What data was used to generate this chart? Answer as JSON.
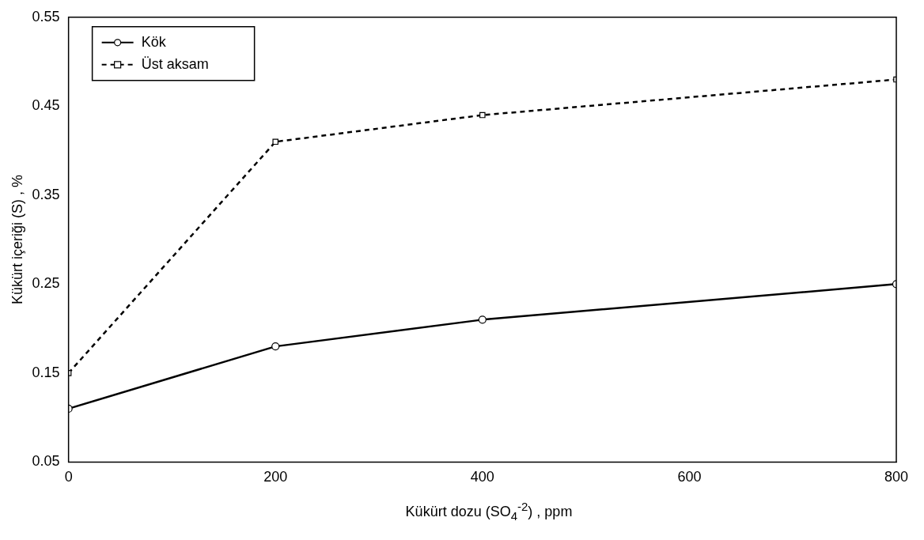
{
  "chart_data": {
    "type": "line",
    "xlabel": "Kükürt dozu (SO$_{4}$$^{-2}$) , ppm",
    "ylabel": "Kükürt içeriği (S) , %",
    "x": [
      0,
      200,
      400,
      800
    ],
    "series": [
      {
        "name": "Kök",
        "color": "#000000",
        "values": [
          0.11,
          0.18,
          0.21,
          0.25
        ],
        "marker": "circle",
        "line_style": "solid"
      },
      {
        "name": "Üst aksam",
        "color": "#000000",
        "values": [
          0.15,
          0.41,
          0.44,
          0.48
        ],
        "marker": "square",
        "line_style": "dashed"
      }
    ],
    "xlim": [
      0,
      800
    ],
    "xticks": [
      0,
      200,
      400,
      600,
      800
    ],
    "ylim": [
      0.05,
      0.55
    ],
    "yticks": [
      0.05,
      0.15,
      0.25,
      0.35,
      0.45,
      0.55
    ],
    "grid": false,
    "legend": "top left"
  }
}
